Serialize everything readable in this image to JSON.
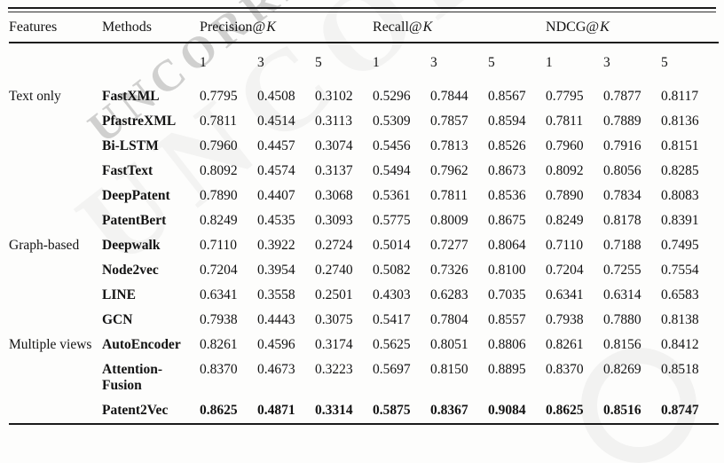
{
  "watermark": {
    "text": "UNCORRECTED",
    "text_faint": "UNCORRECTED"
  },
  "table": {
    "headers": {
      "features": "Features",
      "methods": "Methods",
      "groups": [
        {
          "prefix": "Precision@",
          "k": "K"
        },
        {
          "prefix": "Recall@",
          "k": "K"
        },
        {
          "prefix": "NDCG@",
          "k": "K"
        }
      ],
      "k_values": [
        "1",
        "3",
        "5"
      ]
    },
    "rows": [
      {
        "features": "Text only",
        "method": "FastXML",
        "bold": false,
        "values": [
          "0.7795",
          "0.4508",
          "0.3102",
          "0.5296",
          "0.7844",
          "0.8567",
          "0.7795",
          "0.7877",
          "0.8117"
        ]
      },
      {
        "features": "",
        "method": "PfastreXML",
        "bold": false,
        "values": [
          "0.7811",
          "0.4514",
          "0.3113",
          "0.5309",
          "0.7857",
          "0.8594",
          "0.7811",
          "0.7889",
          "0.8136"
        ]
      },
      {
        "features": "",
        "method": "Bi-LSTM",
        "bold": false,
        "values": [
          "0.7960",
          "0.4457",
          "0.3074",
          "0.5456",
          "0.7813",
          "0.8526",
          "0.7960",
          "0.7916",
          "0.8151"
        ]
      },
      {
        "features": "",
        "method": "FastText",
        "bold": false,
        "values": [
          "0.8092",
          "0.4574",
          "0.3137",
          "0.5494",
          "0.7962",
          "0.8673",
          "0.8092",
          "0.8056",
          "0.8285"
        ]
      },
      {
        "features": "",
        "method": "DeepPatent",
        "bold": false,
        "values": [
          "0.7890",
          "0.4407",
          "0.3068",
          "0.5361",
          "0.7811",
          "0.8536",
          "0.7890",
          "0.7834",
          "0.8083"
        ]
      },
      {
        "features": "",
        "method": "PatentBert",
        "bold": false,
        "values": [
          "0.8249",
          "0.4535",
          "0.3093",
          "0.5775",
          "0.8009",
          "0.8675",
          "0.8249",
          "0.8178",
          "0.8391"
        ]
      },
      {
        "features": "Graph-based",
        "method": "Deepwalk",
        "bold": false,
        "values": [
          "0.7110",
          "0.3922",
          "0.2724",
          "0.5014",
          "0.7277",
          "0.8064",
          "0.7110",
          "0.7188",
          "0.7495"
        ]
      },
      {
        "features": "",
        "method": "Node2vec",
        "bold": false,
        "values": [
          "0.7204",
          "0.3954",
          "0.2740",
          "0.5082",
          "0.7326",
          "0.8100",
          "0.7204",
          "0.7255",
          "0.7554"
        ]
      },
      {
        "features": "",
        "method": "LINE",
        "bold": false,
        "values": [
          "0.6341",
          "0.3558",
          "0.2501",
          "0.4303",
          "0.6283",
          "0.7035",
          "0.6341",
          "0.6314",
          "0.6583"
        ]
      },
      {
        "features": "",
        "method": "GCN",
        "bold": false,
        "values": [
          "0.7938",
          "0.4443",
          "0.3075",
          "0.5417",
          "0.7804",
          "0.8557",
          "0.7938",
          "0.7880",
          "0.8138"
        ]
      },
      {
        "features": "Multiple views",
        "method": "AutoEncoder",
        "bold": false,
        "values": [
          "0.8261",
          "0.4596",
          "0.3174",
          "0.5625",
          "0.8051",
          "0.8806",
          "0.8261",
          "0.8156",
          "0.8412"
        ]
      },
      {
        "features": "",
        "method": "Attention-Fusion",
        "bold": false,
        "values": [
          "0.8370",
          "0.4673",
          "0.3223",
          "0.5697",
          "0.8150",
          "0.8895",
          "0.8370",
          "0.8269",
          "0.8518"
        ]
      },
      {
        "features": "",
        "method": "Patent2Vec",
        "bold": true,
        "values": [
          "0.8625",
          "0.4871",
          "0.3314",
          "0.5875",
          "0.8367",
          "0.9084",
          "0.8625",
          "0.8516",
          "0.8747"
        ]
      }
    ]
  }
}
